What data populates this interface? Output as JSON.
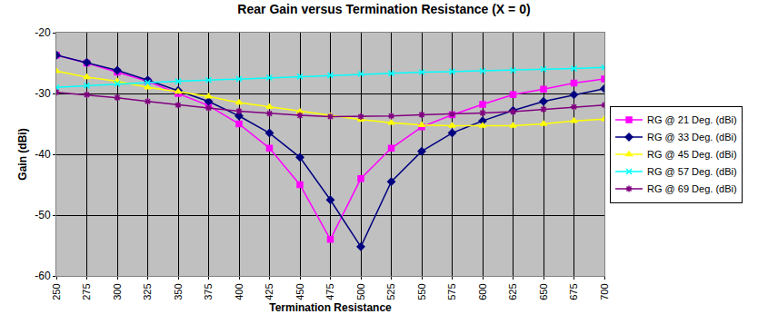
{
  "chart_data": {
    "type": "line",
    "title": "Rear Gain versus Termination Resistance (X = 0)",
    "x_label": "Termination Resistance",
    "y_label": "Gain (dBi)",
    "x": [
      250,
      275,
      300,
      325,
      350,
      375,
      400,
      425,
      450,
      475,
      500,
      525,
      550,
      575,
      600,
      625,
      650,
      675,
      700
    ],
    "xlim": [
      250,
      700
    ],
    "xticks": [
      250,
      275,
      300,
      325,
      350,
      375,
      400,
      425,
      450,
      475,
      500,
      525,
      550,
      575,
      600,
      625,
      650,
      675,
      700
    ],
    "ylim": [
      -60,
      -20
    ],
    "yticks": [
      -60,
      -50,
      -40,
      -30,
      -20
    ],
    "grid": true,
    "legend": "right",
    "series": [
      {
        "name": "RG @ 21 Deg. (dBi)",
        "color": "#ff00ff",
        "marker": "square",
        "values": [
          -23.7,
          -25,
          -26.5,
          -28,
          -30,
          -32,
          -35,
          -39,
          -45,
          -54,
          -44,
          -39,
          -35.5,
          -33.5,
          -31.8,
          -30.2,
          -29.3,
          -28.3,
          -27.6
        ]
      },
      {
        "name": "RG @ 33 Deg. (dBi)",
        "color": "#000080",
        "marker": "diamond",
        "values": [
          -23.7,
          -24.9,
          -26.2,
          -27.8,
          -29.5,
          -31.3,
          -33.7,
          -36.5,
          -40.5,
          -47.5,
          -55.2,
          -44.5,
          -39.5,
          -36.5,
          -34.5,
          -32.8,
          -31.3,
          -30.2,
          -29.2
        ]
      },
      {
        "name": "RG @ 45 Deg. (dBi)",
        "color": "#ffff00",
        "marker": "triangle-up",
        "values": [
          -26.3,
          -27.3,
          -28,
          -29,
          -29.7,
          -30.5,
          -31.5,
          -32.2,
          -33,
          -33.7,
          -34.3,
          -34.8,
          -35.2,
          -35.3,
          -35.3,
          -35.3,
          -35,
          -34.5,
          -34.2
        ]
      },
      {
        "name": "RG @ 57 Deg. (dBi)",
        "color": "#00ffff",
        "marker": "x",
        "values": [
          -29,
          -28.7,
          -28.4,
          -28.2,
          -28,
          -27.8,
          -27.6,
          -27.4,
          -27.2,
          -27,
          -26.8,
          -26.7,
          -26.5,
          -26.4,
          -26.3,
          -26.2,
          -26,
          -25.9,
          -25.7
        ]
      },
      {
        "name": "RG @ 69 Deg. (dBi)",
        "color": "#800080",
        "marker": "asterisk",
        "values": [
          -29.8,
          -30.2,
          -30.7,
          -31.3,
          -31.9,
          -32.4,
          -32.9,
          -33.3,
          -33.6,
          -33.8,
          -33.8,
          -33.7,
          -33.5,
          -33.4,
          -33.2,
          -33,
          -32.6,
          -32.2,
          -31.9
        ]
      }
    ]
  }
}
